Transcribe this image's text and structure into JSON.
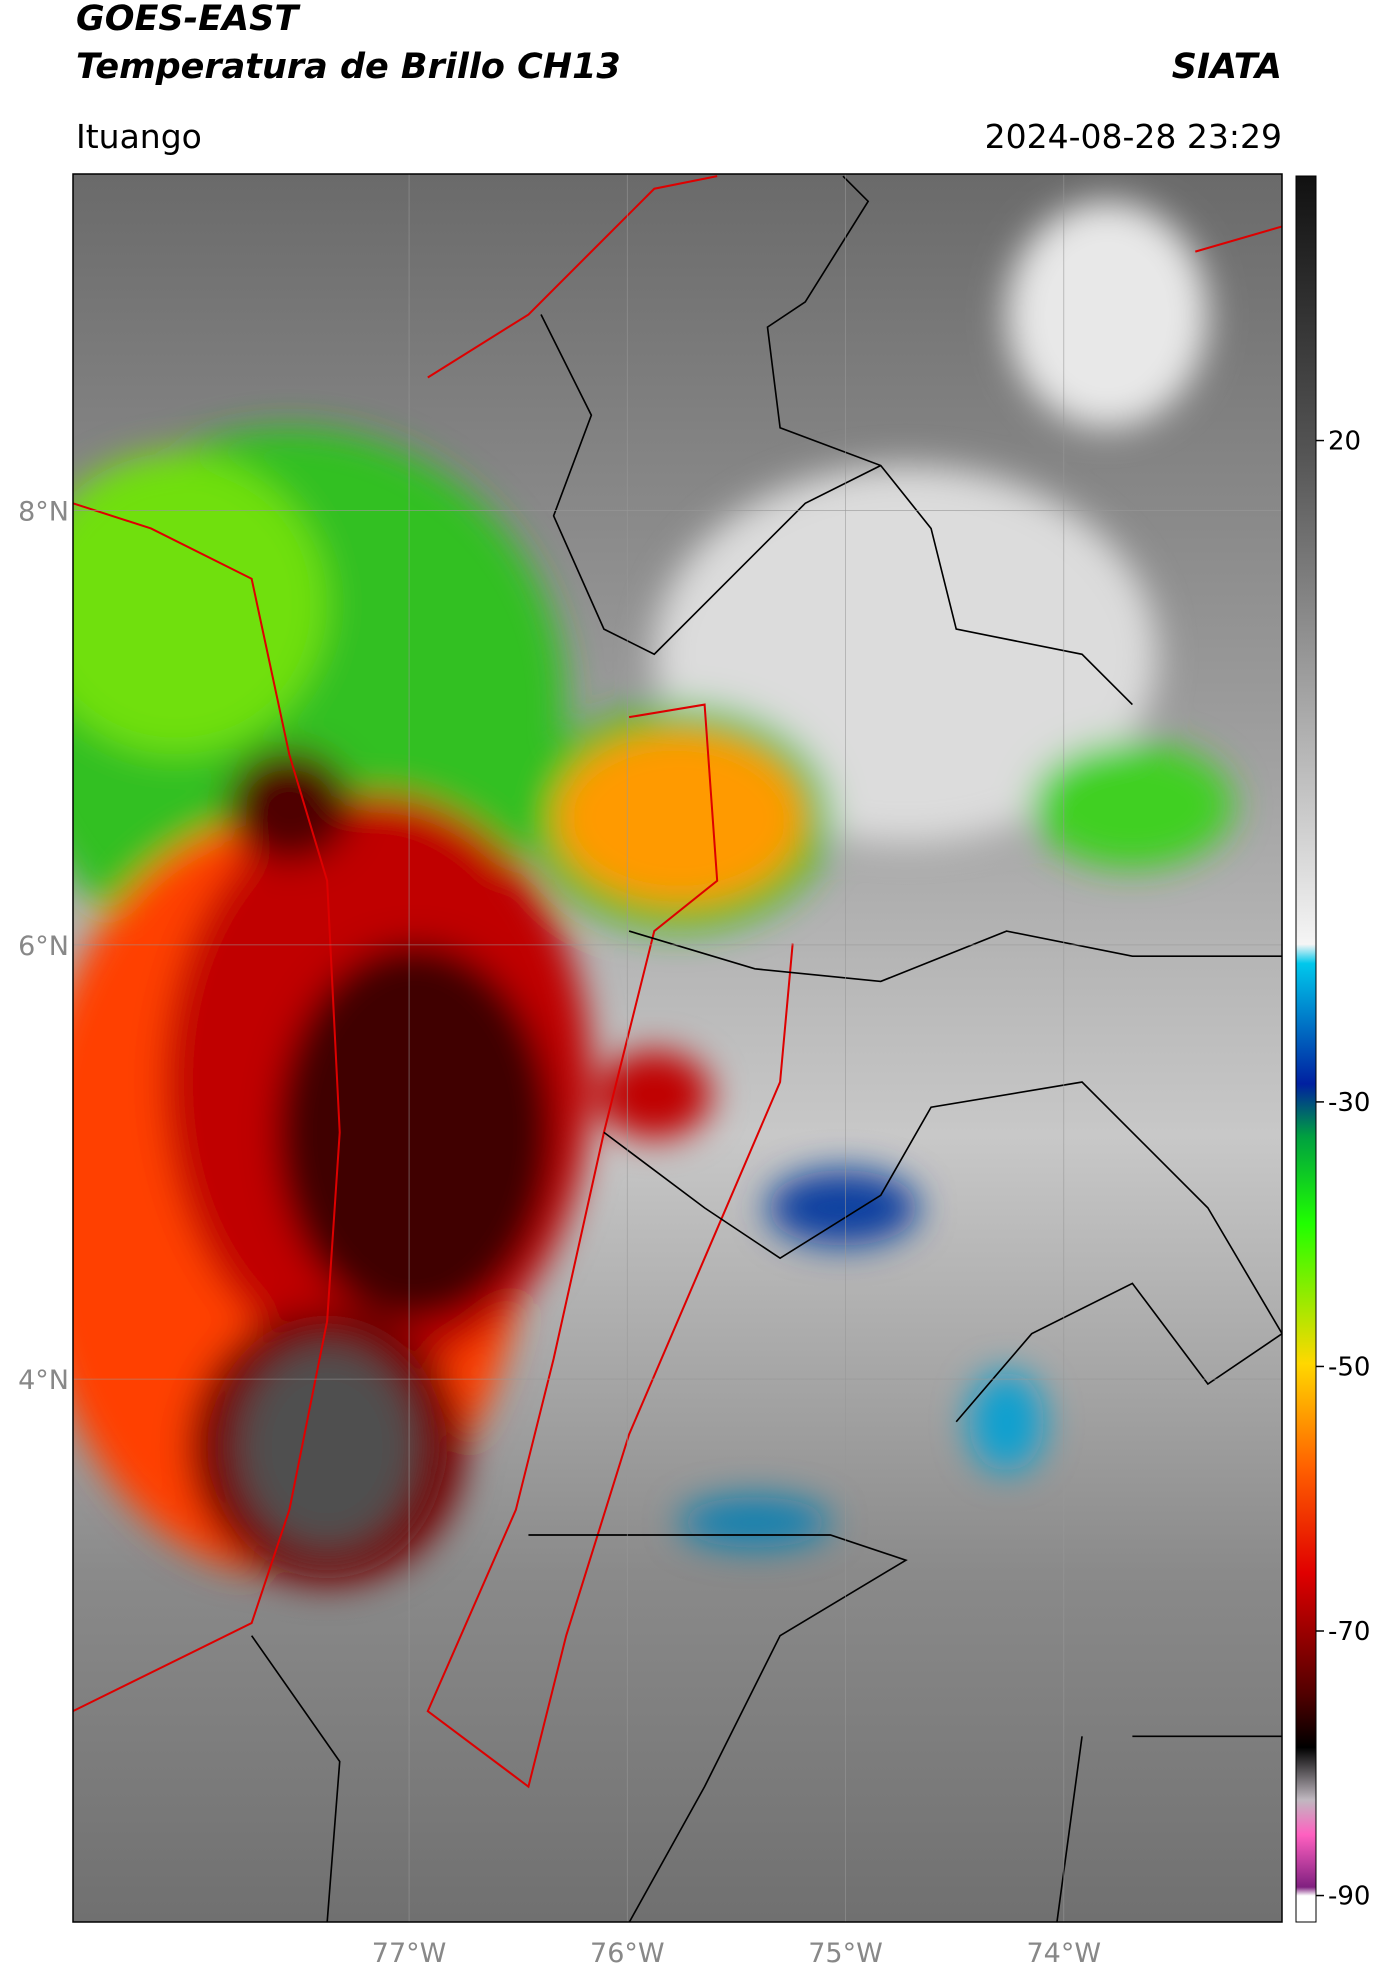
{
  "header": {
    "title": "GOES-EAST",
    "subtitle": "Temperatura de Brillo CH13",
    "agency": "SIATA",
    "location": "Ituango",
    "timestamp": "2024-08-28 23:29"
  },
  "map": {
    "xlim": [
      -78.54,
      -73.0
    ],
    "ylim": [
      1.5,
      9.55
    ],
    "lat_ticks": [
      {
        "value": 8,
        "label": "8°N"
      },
      {
        "value": 6,
        "label": "6°N"
      },
      {
        "value": 4,
        "label": "4°N"
      }
    ],
    "lon_ticks": [
      {
        "value": -77,
        "label": "77°W"
      },
      {
        "value": -76,
        "label": "76°W"
      },
      {
        "value": -75,
        "label": "75°W"
      },
      {
        "value": -74,
        "label": "74°W"
      }
    ]
  },
  "colorbar": {
    "range": [
      -92,
      40
    ],
    "ticks": [
      20,
      -30,
      -50,
      -70,
      -90
    ]
  }
}
